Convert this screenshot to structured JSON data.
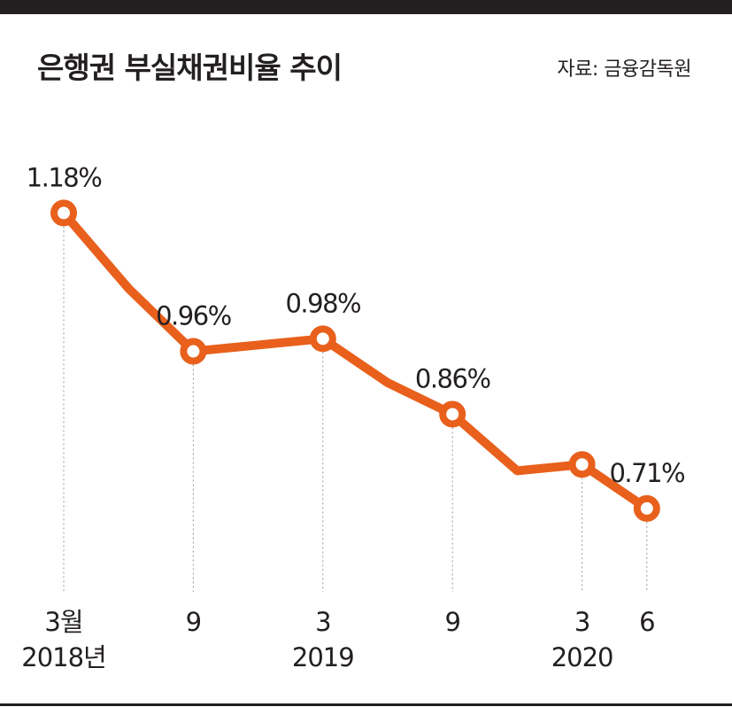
{
  "header": {
    "title": "은행권 부실채권비율 추이",
    "source": "자료: 금융감독원"
  },
  "colors": {
    "line": "#e8601c",
    "text": "#231f20",
    "bar": "#231f20",
    "guide": "#999999"
  },
  "chart_data": {
    "type": "line",
    "title": "은행권 부실채권비율 추이",
    "xlabel": "",
    "ylabel": "",
    "grid": false,
    "legend": "none",
    "ylim": [
      0.6,
      1.22
    ],
    "points": [
      {
        "x": "2018-03",
        "y": 1.18,
        "label": "1.18%",
        "marker": true
      },
      {
        "x": "2018-06",
        "y": 1.06,
        "label": "",
        "marker": false
      },
      {
        "x": "2018-09",
        "y": 0.96,
        "label": "0.96%",
        "marker": true
      },
      {
        "x": "2018-12",
        "y": 0.97,
        "label": "",
        "marker": false
      },
      {
        "x": "2019-03",
        "y": 0.98,
        "label": "0.98%",
        "marker": true
      },
      {
        "x": "2019-06",
        "y": 0.91,
        "label": "",
        "marker": false
      },
      {
        "x": "2019-09",
        "y": 0.86,
        "label": "0.86%",
        "marker": true
      },
      {
        "x": "2019-12",
        "y": 0.77,
        "label": "",
        "marker": false
      },
      {
        "x": "2020-03",
        "y": 0.78,
        "label": "",
        "marker": true
      },
      {
        "x": "2020-06",
        "y": 0.71,
        "label": "0.71%",
        "marker": true
      }
    ],
    "x_ticks": [
      {
        "x": "2018-03",
        "month": "3월",
        "year": "2018년"
      },
      {
        "x": "2018-09",
        "month": "9",
        "year": ""
      },
      {
        "x": "2019-03",
        "month": "3",
        "year": "2019"
      },
      {
        "x": "2019-09",
        "month": "9",
        "year": ""
      },
      {
        "x": "2020-03",
        "month": "3",
        "year": "2020"
      },
      {
        "x": "2020-06",
        "month": "6",
        "year": ""
      }
    ]
  }
}
